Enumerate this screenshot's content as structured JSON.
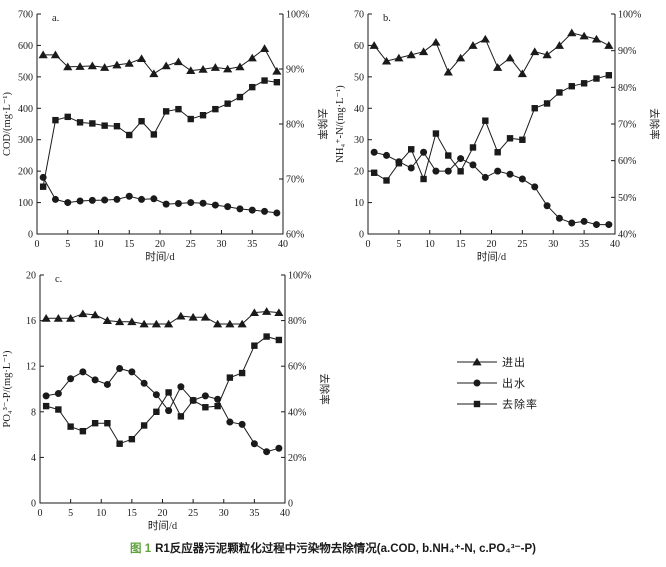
{
  "figure": {
    "caption_prefix": "图 1",
    "caption_text": "R1反应器污泥颗粒化过程中污染物去除情况(a.COD, b.NH₄⁺-N, c.PO₄³⁻-P)",
    "caption_accent_color": "#5fa33c",
    "ink_color": "#1a1a1a"
  },
  "legend": {
    "items": [
      {
        "label": "进出",
        "marker": "triangle"
      },
      {
        "label": "出水",
        "marker": "circle"
      },
      {
        "label": "去除率",
        "marker": "square"
      }
    ]
  },
  "chart_data": [
    {
      "id": "a",
      "type": "line",
      "panel_label": "a.",
      "xlabel": "时间/d",
      "ylabel_left": "COD/(mg·L⁻¹)",
      "ylabel_right": "去除率",
      "xlim": [
        0,
        40
      ],
      "xticks": [
        0,
        5,
        10,
        15,
        20,
        25,
        30,
        35,
        40
      ],
      "ylim_left": [
        0,
        700
      ],
      "yticks_left": [
        0,
        100,
        200,
        300,
        400,
        500,
        600,
        700
      ],
      "ylim_right": [
        60,
        100
      ],
      "yticks_right": {
        "values": [
          60,
          70,
          80,
          90,
          100
        ],
        "labels": [
          "60%",
          "70%",
          "80%",
          "90%",
          "100%"
        ]
      },
      "x": [
        1,
        3,
        5,
        7,
        9,
        11,
        13,
        15,
        17,
        19,
        21,
        23,
        25,
        27,
        29,
        31,
        33,
        35,
        37,
        39
      ],
      "series": [
        {
          "name": "进出",
          "marker": "triangle",
          "axis": "left",
          "values": [
            570,
            570,
            532,
            533,
            535,
            530,
            538,
            543,
            558,
            510,
            535,
            548,
            520,
            524,
            530,
            525,
            532,
            560,
            590,
            518
          ]
        },
        {
          "name": "出水",
          "marker": "circle",
          "axis": "left",
          "values": [
            180,
            110,
            100,
            105,
            107,
            108,
            110,
            120,
            110,
            112,
            95,
            97,
            100,
            98,
            92,
            87,
            80,
            76,
            72,
            67
          ]
        },
        {
          "name": "去除率",
          "marker": "square",
          "axis": "right",
          "values": [
            68.6,
            80.7,
            81.3,
            80.3,
            80.1,
            79.7,
            79.6,
            78.0,
            80.5,
            78.1,
            82.3,
            82.7,
            80.9,
            81.6,
            82.7,
            83.7,
            84.9,
            86.7,
            87.9,
            87.6
          ]
        }
      ]
    },
    {
      "id": "b",
      "type": "line",
      "panel_label": "b.",
      "xlabel": "时间/d",
      "ylabel_left": "NH₄⁺-N/(mg·L⁻¹)",
      "ylabel_right": "去除率",
      "xlim": [
        0,
        40
      ],
      "xticks": [
        0,
        5,
        10,
        15,
        20,
        25,
        30,
        35,
        40
      ],
      "ylim_left": [
        0,
        70
      ],
      "yticks_left": [
        0,
        10,
        20,
        30,
        40,
        50,
        60,
        70
      ],
      "ylim_right": [
        40,
        100
      ],
      "yticks_right": {
        "values": [
          40,
          50,
          60,
          70,
          80,
          90,
          100
        ],
        "labels": [
          "40%",
          "50%",
          "60%",
          "70%",
          "80%",
          "90%",
          "100%"
        ]
      },
      "x": [
        1,
        3,
        5,
        7,
        9,
        11,
        13,
        15,
        17,
        19,
        21,
        23,
        25,
        27,
        29,
        31,
        33,
        35,
        37,
        39
      ],
      "series": [
        {
          "name": "进出",
          "marker": "triangle",
          "axis": "left",
          "values": [
            60,
            55,
            56,
            57,
            58,
            61,
            51.5,
            56,
            60,
            62,
            53,
            56,
            51,
            58,
            57,
            60,
            64,
            63,
            62,
            60
          ]
        },
        {
          "name": "出水",
          "marker": "circle",
          "axis": "left",
          "values": [
            26,
            25,
            23,
            21,
            26,
            20,
            20,
            24,
            22,
            18,
            20,
            19,
            17.5,
            15,
            9,
            5,
            3.5,
            4,
            3,
            3
          ]
        },
        {
          "name": "去除率",
          "marker": "square",
          "axis": "right",
          "values": [
            56.7,
            54.6,
            59.3,
            63.1,
            55.0,
            67.4,
            61.4,
            57.1,
            63.6,
            70.9,
            62.3,
            66.1,
            65.7,
            74.3,
            75.6,
            78.6,
            80.3,
            81.1,
            82.4,
            83.3
          ]
        }
      ]
    },
    {
      "id": "c",
      "type": "line",
      "panel_label": "c.",
      "xlabel": "时间/d",
      "ylabel_left": "PO₄³⁻-P/(mg·L⁻¹)",
      "ylabel_right": "去除率",
      "xlim": [
        0,
        40
      ],
      "xticks": [
        0,
        5,
        10,
        15,
        20,
        25,
        30,
        35,
        40
      ],
      "ylim_left": [
        0,
        20
      ],
      "yticks_left": [
        0,
        4,
        8,
        12,
        16,
        20
      ],
      "ylim_right": [
        0,
        100
      ],
      "yticks_right": {
        "values": [
          0,
          20,
          40,
          60,
          80,
          100
        ],
        "labels": [
          "0",
          "20%",
          "40%",
          "60%",
          "80%",
          "100%"
        ]
      },
      "x": [
        1,
        3,
        5,
        7,
        9,
        11,
        13,
        15,
        17,
        19,
        21,
        23,
        25,
        27,
        29,
        31,
        33,
        35,
        37,
        39
      ],
      "series": [
        {
          "name": "进出",
          "marker": "triangle",
          "axis": "left",
          "values": [
            16.2,
            16.2,
            16.2,
            16.6,
            16.5,
            16.0,
            15.9,
            15.9,
            15.7,
            15.7,
            15.7,
            16.4,
            16.3,
            16.3,
            15.7,
            15.7,
            15.7,
            16.7,
            16.8,
            16.7
          ]
        },
        {
          "name": "出水",
          "marker": "circle",
          "axis": "left",
          "values": [
            9.4,
            9.6,
            10.9,
            11.5,
            10.8,
            10.4,
            11.8,
            11.5,
            10.5,
            9.5,
            8.1,
            10.2,
            9.0,
            9.4,
            9.1,
            7.1,
            6.9,
            5.2,
            4.5,
            4.8
          ]
        },
        {
          "name": "去除率",
          "marker": "square",
          "axis": "right",
          "values": [
            42.5,
            41,
            33.5,
            31.5,
            35,
            35,
            26,
            28,
            34,
            40,
            48.5,
            38,
            45,
            42,
            42.5,
            55,
            57,
            69,
            73,
            71.5
          ]
        }
      ]
    }
  ]
}
